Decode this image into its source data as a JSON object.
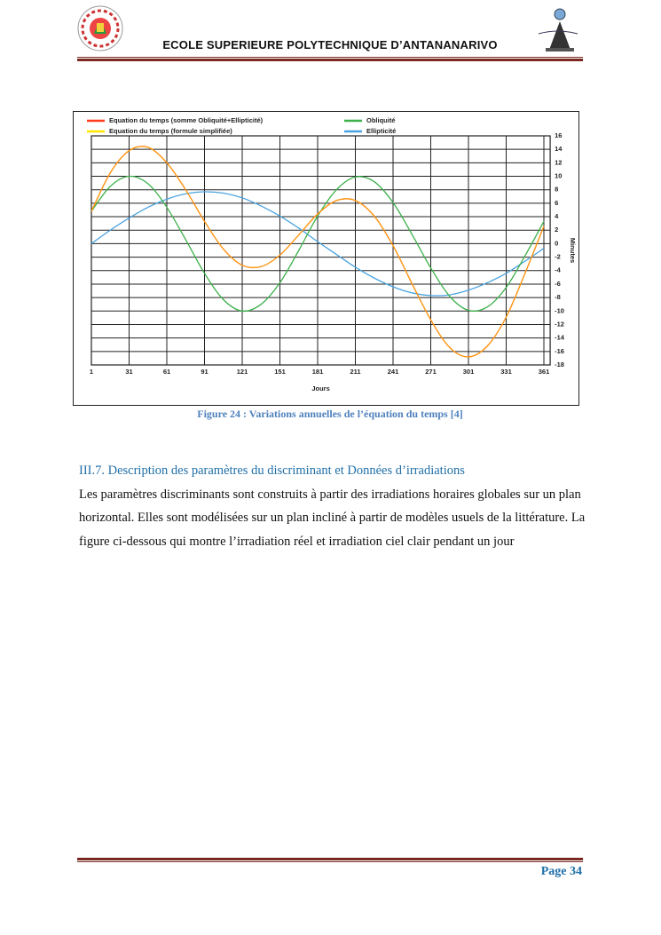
{
  "header": {
    "title": "ECOLE SUPERIEURE POLYTECHNIQUE D’ANTANANARIVO"
  },
  "figure": {
    "chart_data": {
      "type": "line",
      "x_label": "Jours",
      "y_label": "Minutes",
      "x": [
        1,
        16,
        31,
        46,
        61,
        76,
        91,
        106,
        121,
        136,
        151,
        166,
        181,
        196,
        211,
        226,
        241,
        256,
        271,
        286,
        301,
        316,
        331,
        346,
        361
      ],
      "series": [
        {
          "name": "Equation du temps (somme Obliquité+Ellipticité)",
          "color": "#ff3b1f",
          "values": [
            4.8,
            10.5,
            13.8,
            14.3,
            12.0,
            8.0,
            3.3,
            -0.8,
            -3.2,
            -3.4,
            -1.7,
            1.3,
            4.4,
            6.4,
            6.4,
            4.1,
            -0.3,
            -5.9,
            -11.3,
            -15.4,
            -16.8,
            -15.2,
            -10.9,
            -4.4,
            2.6
          ]
        },
        {
          "name": "Equation du temps (formule simplifiée)",
          "color": "#ffe600",
          "values": [
            4.8,
            10.5,
            13.8,
            14.3,
            12.0,
            8.0,
            3.3,
            -0.8,
            -3.2,
            -3.4,
            -1.7,
            1.3,
            4.4,
            6.4,
            6.4,
            4.1,
            -0.3,
            -5.9,
            -11.3,
            -15.4,
            -16.8,
            -15.2,
            -10.9,
            -4.4,
            2.6
          ]
        },
        {
          "name": "Obliquité",
          "color": "#3cb04a",
          "values": [
            4.8,
            8.5,
            10.0,
            8.9,
            5.4,
            0.6,
            -4.4,
            -8.3,
            -10.0,
            -9.0,
            -5.8,
            -1.0,
            4.1,
            8.0,
            9.9,
            9.2,
            6.1,
            1.4,
            -3.6,
            -7.8,
            -9.9,
            -9.4,
            -6.5,
            -1.8,
            3.3
          ]
        },
        {
          "name": "Ellipticité",
          "color": "#4aa3df",
          "values": [
            0,
            2.0,
            3.8,
            5.4,
            6.6,
            7.4,
            7.7,
            7.5,
            6.8,
            5.6,
            4.1,
            2.3,
            0.3,
            -1.6,
            -3.5,
            -5.1,
            -6.4,
            -7.3,
            -7.7,
            -7.6,
            -6.9,
            -5.8,
            -4.4,
            -2.6,
            -0.7
          ]
        }
      ],
      "xlim": [
        1,
        366
      ],
      "xticks": [
        1,
        31,
        61,
        91,
        121,
        151,
        181,
        211,
        241,
        271,
        301,
        331,
        361
      ],
      "ylim": [
        -18,
        16
      ],
      "yticks": [
        16,
        14,
        12,
        10,
        8,
        6,
        4,
        2,
        0,
        -2,
        -4,
        -6,
        -8,
        -10,
        -12,
        -14,
        -16,
        -18
      ],
      "grid": true
    },
    "caption": "Figure 24 : Variations annuelles de l’équation du temps [4]"
  },
  "section": {
    "heading": "III.7. Description des paramètres du discriminant et Données d’irradiations",
    "paragraph": "Les paramètres discriminants sont construits à partir des irradiations horaires globales sur un plan horizontal. Elles sont modélisées sur un plan incliné à partir de modèles usuels de la littérature. La figure ci-dessous qui montre l’irradiation réel et irradiation ciel clair pendant un jour"
  },
  "footer": {
    "page": "Page 34"
  }
}
